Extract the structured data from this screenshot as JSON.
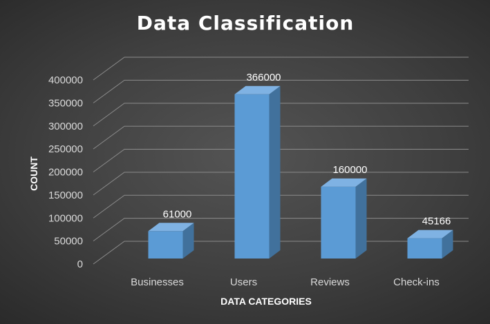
{
  "chart_data": {
    "type": "bar",
    "title": "Data Classification",
    "xlabel": "DATA CATEGORIES",
    "ylabel": "COUNT",
    "categories": [
      "Businesses",
      "Users",
      "Reviews",
      "Check-ins"
    ],
    "values": [
      61000,
      366000,
      160000,
      45166
    ],
    "data_labels": [
      "61000",
      "366000",
      "160000",
      "45166"
    ],
    "ylim": [
      0,
      400000
    ],
    "yticks": [
      "0",
      "50000",
      "100000",
      "150000",
      "200000",
      "250000",
      "300000",
      "350000",
      "400000"
    ],
    "grid": true,
    "legend": "none",
    "style": "3d-column",
    "colors": {
      "bar_front": "#5b9bd5",
      "bar_top": "#7fb2e3",
      "bar_side": "#41719c",
      "gridline": "#8c8c8c",
      "text": "#d9d9d9",
      "title": "#ffffff"
    }
  }
}
